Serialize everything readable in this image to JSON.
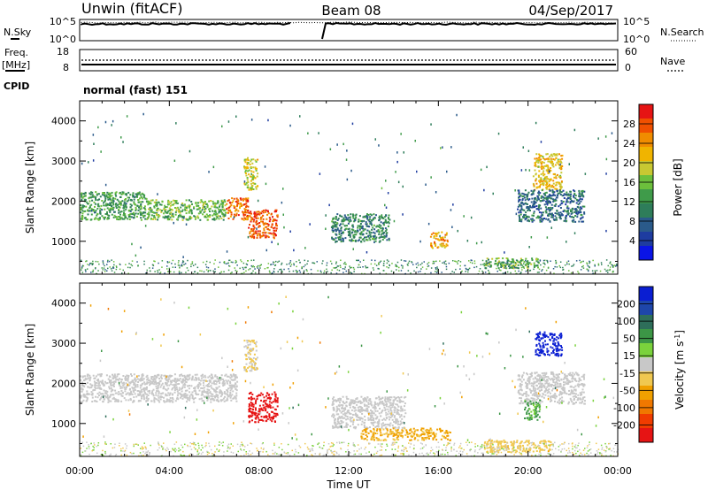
{
  "header": {
    "title_left": "Unwin (fitACF)",
    "title_center": "Beam 08",
    "title_right": "04/Sep/2017"
  },
  "top_panels": {
    "nsky_label": "N.Sky",
    "nsearch_label": "N.Search",
    "nsky_ticks": [
      "10^5",
      "10^0"
    ],
    "freq_label": "Freq.",
    "freq_unit": "[MHz]",
    "freq_ticks": [
      "18",
      "8"
    ],
    "nave_label": "Nave",
    "nave_ticks": [
      "60",
      "0"
    ],
    "cpid_label": "CPID",
    "cpid_value": "normal (fast) 151"
  },
  "colorbars": {
    "power": {
      "label": "Power [dB]",
      "ticks": [
        "28",
        "24",
        "20",
        "16",
        "12",
        "8",
        "4"
      ],
      "colors": [
        "#0a14e6",
        "#1e3ca0",
        "#2a5a8a",
        "#2e7d5a",
        "#3f9b4a",
        "#6cbf3c",
        "#c8c832",
        "#f0b400",
        "#f08c00",
        "#f05000",
        "#e61414"
      ]
    },
    "velocity": {
      "label": "Velocity [m s",
      "label_sup": "-1",
      "label_end": "]",
      "ticks": [
        "200",
        "100",
        "50",
        "15",
        "-15",
        "-50",
        "-100",
        "-200"
      ],
      "colors": [
        "#0a1ed2",
        "#1e46aa",
        "#2e6e5a",
        "#3c9646",
        "#7ad23c",
        "#c8c8c8",
        "#f0c850",
        "#f0a000",
        "#f07800",
        "#f03c00",
        "#e61414"
      ]
    }
  },
  "chart_data": [
    {
      "type": "heatmap",
      "title": "Power",
      "ylabel": "Slant Range [km]",
      "xlabel": "Time UT",
      "xlim": [
        "00:00",
        "24:00"
      ],
      "ylim": [
        180,
        4500
      ],
      "x_tick_labels": [
        "00:00",
        "04:00",
        "08:00",
        "12:00",
        "16:00",
        "20:00",
        "00:00"
      ],
      "y_tick_labels": [
        "1000",
        "2000",
        "3000",
        "4000"
      ],
      "colorbar": "Power [dB]",
      "regions": [
        {
          "hours": [
            0.0,
            3.0
          ],
          "range_km": [
            1550,
            2250
          ],
          "power_db": 12
        },
        {
          "hours": [
            3.0,
            6.5
          ],
          "range_km": [
            1550,
            2050
          ],
          "power_db": 14
        },
        {
          "hours": [
            6.5,
            7.5
          ],
          "range_km": [
            1550,
            2100
          ],
          "power_db": 24
        },
        {
          "hours": [
            7.5,
            8.8
          ],
          "range_km": [
            1100,
            1800
          ],
          "power_db": 26
        },
        {
          "hours": [
            7.3,
            7.9
          ],
          "range_km": [
            2300,
            3100
          ],
          "power_db": 18
        },
        {
          "hours": [
            11.2,
            13.8
          ],
          "range_km": [
            1000,
            1700
          ],
          "power_db": 10
        },
        {
          "hours": [
            15.6,
            16.4
          ],
          "range_km": [
            850,
            1250
          ],
          "power_db": 22
        },
        {
          "hours": [
            18.0,
            20.5
          ],
          "range_km": [
            350,
            600
          ],
          "power_db": 14
        },
        {
          "hours": [
            20.2,
            21.5
          ],
          "range_km": [
            2300,
            3200
          ],
          "power_db": 20
        },
        {
          "hours": [
            19.5,
            22.5
          ],
          "range_km": [
            1500,
            2300
          ],
          "power_db": 8
        }
      ]
    },
    {
      "type": "heatmap",
      "title": "Velocity",
      "ylabel": "Slant Range [km]",
      "xlabel": "Time UT",
      "xlim": [
        "00:00",
        "24:00"
      ],
      "ylim": [
        180,
        4500
      ],
      "x_tick_labels": [
        "00:00",
        "04:00",
        "08:00",
        "12:00",
        "16:00",
        "20:00",
        "00:00"
      ],
      "y_tick_labels": [
        "1000",
        "2000",
        "3000",
        "4000"
      ],
      "colorbar": "Velocity [m s-1]",
      "regions": [
        {
          "hours": [
            0.0,
            7.0
          ],
          "range_km": [
            1550,
            2250
          ],
          "velocity_ms": 0
        },
        {
          "hours": [
            7.3,
            7.9
          ],
          "range_km": [
            2300,
            3100
          ],
          "velocity_ms": -20
        },
        {
          "hours": [
            7.5,
            8.8
          ],
          "range_km": [
            1050,
            1800
          ],
          "velocity_ms": -200
        },
        {
          "hours": [
            11.2,
            14.5
          ],
          "range_km": [
            900,
            1700
          ],
          "velocity_ms": 0
        },
        {
          "hours": [
            12.5,
            16.5
          ],
          "range_km": [
            600,
            900
          ],
          "velocity_ms": -60
        },
        {
          "hours": [
            18.0,
            21.0
          ],
          "range_km": [
            300,
            600
          ],
          "velocity_ms": -40
        },
        {
          "hours": [
            20.3,
            21.5
          ],
          "range_km": [
            2700,
            3300
          ],
          "velocity_ms": 200
        },
        {
          "hours": [
            19.5,
            22.5
          ],
          "range_km": [
            1500,
            2300
          ],
          "velocity_ms": 0
        },
        {
          "hours": [
            19.8,
            20.5
          ],
          "range_km": [
            1100,
            1600
          ],
          "velocity_ms": 60
        }
      ]
    }
  ]
}
